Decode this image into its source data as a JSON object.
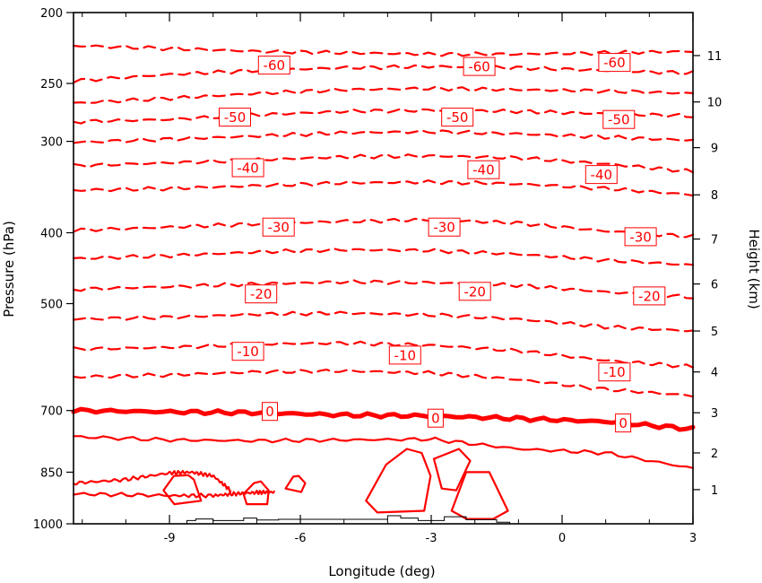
{
  "chart_data": {
    "type": "contour",
    "xlabel": "Longitude (deg)",
    "ylabel": "Pressure (hPa)",
    "y2label": "Height (km)",
    "xlim": [
      -11.2,
      3
    ],
    "ylim": [
      1000,
      200
    ],
    "y_scale": "log",
    "x_ticks": [
      -9,
      -6,
      -3,
      0,
      3
    ],
    "x_tick_labels": [
      "-9",
      "-6",
      "-3",
      "0",
      "3"
    ],
    "y_ticks": [
      200,
      250,
      300,
      400,
      500,
      700,
      850,
      1000
    ],
    "y_tick_labels": [
      "200",
      "250",
      "300",
      "400",
      "500",
      "700",
      "850",
      "1000"
    ],
    "y2_ticks_km": [
      1,
      2,
      3,
      4,
      5,
      6,
      7,
      8,
      9,
      10,
      11
    ],
    "y2_tick_labels": [
      "1",
      "2",
      "3",
      "4",
      "5",
      "6",
      "7",
      "8",
      "9",
      "10",
      "11"
    ],
    "y2_tick_pressure": [
      898,
      800,
      705,
      620,
      545,
      470,
      408,
      355,
      306,
      265,
      229
    ],
    "line_color": "#ff0000",
    "terrain_color": "#000000",
    "contour_interval": 5,
    "contours": [
      {
        "level": -65,
        "style": "dashed",
        "x": [
          -11.2,
          -9,
          -7,
          -5,
          -3,
          -1,
          1,
          3
        ],
        "p": [
          222,
          224,
          226,
          227,
          228,
          228,
          227,
          226
        ]
      },
      {
        "level": -60,
        "style": "dashed",
        "x": [
          -11.2,
          -9,
          -7,
          -5,
          -3,
          -1,
          1,
          3
        ],
        "p": [
          248,
          243,
          240,
          238,
          237,
          238,
          240,
          242
        ]
      },
      {
        "level": -55,
        "style": "dashed",
        "x": [
          -11.2,
          -9,
          -7,
          -5,
          -3,
          -1,
          1,
          3
        ],
        "p": [
          266,
          262,
          258,
          255,
          254,
          255,
          256,
          258
        ]
      },
      {
        "level": -50,
        "style": "dashed",
        "x": [
          -11.2,
          -9,
          -7,
          -5,
          -3,
          -1,
          1,
          3
        ],
        "p": [
          282,
          280,
          276,
          273,
          272,
          273,
          275,
          277
        ]
      },
      {
        "level": -45,
        "style": "dashed",
        "x": [
          -11.2,
          -9,
          -7,
          -5,
          -3,
          -1,
          1,
          3
        ],
        "p": [
          301,
          298,
          295,
          292,
          291,
          293,
          296,
          299
        ]
      },
      {
        "level": -40,
        "style": "dashed",
        "x": [
          -11.2,
          -9,
          -7,
          -5,
          -3,
          -1,
          1,
          3
        ],
        "p": [
          324,
          321,
          318,
          315,
          314,
          316,
          322,
          330
        ]
      },
      {
        "level": -35,
        "style": "dashed",
        "x": [
          -11.2,
          -9,
          -7,
          -5,
          -3,
          -1,
          1,
          3
        ],
        "p": [
          350,
          348,
          345,
          342,
          341,
          343,
          348,
          355
        ]
      },
      {
        "level": -30,
        "style": "dashed",
        "x": [
          -11.2,
          -9,
          -7,
          -5,
          -3,
          -1,
          1,
          3
        ],
        "p": [
          397,
          393,
          389,
          386,
          384,
          388,
          398,
          405
        ]
      },
      {
        "level": -25,
        "style": "dashed",
        "x": [
          -11.2,
          -9,
          -7,
          -5,
          -3,
          -1,
          1,
          3
        ],
        "p": [
          434,
          430,
          425,
          422,
          423,
          428,
          436,
          443
        ]
      },
      {
        "level": -20,
        "style": "dashed",
        "x": [
          -11.2,
          -9,
          -7,
          -5,
          -3,
          -1,
          1,
          3
        ],
        "p": [
          478,
          474,
          470,
          467,
          468,
          472,
          482,
          490
        ]
      },
      {
        "level": -15,
        "style": "dashed",
        "x": [
          -11.2,
          -9,
          -7,
          -5,
          -3,
          -1,
          1,
          3
        ],
        "p": [
          525,
          522,
          517,
          515,
          518,
          525,
          538,
          545
        ]
      },
      {
        "level": -10,
        "style": "dashed",
        "x": [
          -11.2,
          -9,
          -7,
          -5,
          -3,
          -1,
          1,
          3
        ],
        "p": [
          577,
          574,
          568,
          566,
          570,
          580,
          598,
          610
        ]
      },
      {
        "level": -5,
        "style": "dashed",
        "x": [
          -11.2,
          -9,
          -7,
          -5,
          -3,
          -1,
          1,
          3
        ],
        "p": [
          630,
          626,
          620,
          618,
          622,
          635,
          655,
          668
        ]
      },
      {
        "level": 0,
        "style": "bold",
        "x": [
          -11.2,
          -9,
          -7,
          -5,
          -3,
          -1,
          1,
          3
        ],
        "p": [
          700,
          703,
          705,
          710,
          712,
          718,
          725,
          742
        ]
      },
      {
        "level": 5,
        "style": "solid",
        "x": [
          -11.2,
          -9,
          -7,
          -5,
          -3,
          -1,
          1,
          3
        ],
        "p": [
          760,
          768,
          770,
          768,
          766,
          790,
          800,
          840
        ]
      },
      {
        "level": 10,
        "style": "solid",
        "x": [
          -11.2,
          -10,
          -9,
          -8.5,
          -8,
          -7.6
        ],
        "p": [
          880,
          870,
          852,
          850,
          860,
          900
        ]
      },
      {
        "level": 10,
        "style": "solid",
        "x": [
          -11.2,
          -9,
          -8,
          -7.5,
          -7,
          -6.6
        ],
        "p": [
          910,
          915,
          915,
          910,
          906,
          905
        ]
      }
    ],
    "contour_labels": [
      {
        "text": "-60",
        "x": -6.6,
        "p": 236
      },
      {
        "text": "-60",
        "x": -1.9,
        "p": 237
      },
      {
        "text": "-60",
        "x": 1.2,
        "p": 234
      },
      {
        "text": "-50",
        "x": -7.5,
        "p": 278
      },
      {
        "text": "-50",
        "x": -2.4,
        "p": 278
      },
      {
        "text": "-50",
        "x": 1.3,
        "p": 280
      },
      {
        "text": "-40",
        "x": -7.2,
        "p": 326
      },
      {
        "text": "-40",
        "x": -1.8,
        "p": 328
      },
      {
        "text": "-40",
        "x": 0.9,
        "p": 333
      },
      {
        "text": "-30",
        "x": -6.5,
        "p": 393
      },
      {
        "text": "-30",
        "x": -2.7,
        "p": 393
      },
      {
        "text": "-30",
        "x": 1.8,
        "p": 405
      },
      {
        "text": "-20",
        "x": -6.9,
        "p": 485
      },
      {
        "text": "-20",
        "x": -2,
        "p": 481
      },
      {
        "text": "-20",
        "x": 2,
        "p": 488
      },
      {
        "text": "-10",
        "x": -7.2,
        "p": 581
      },
      {
        "text": "-10",
        "x": -3.6,
        "p": 588
      },
      {
        "text": "-10",
        "x": 1.2,
        "p": 620
      },
      {
        "text": "0",
        "x": -6.7,
        "p": 702
      },
      {
        "text": "0",
        "x": -2.9,
        "p": 717
      },
      {
        "text": "0",
        "x": 1.4,
        "p": 728
      }
    ]
  }
}
